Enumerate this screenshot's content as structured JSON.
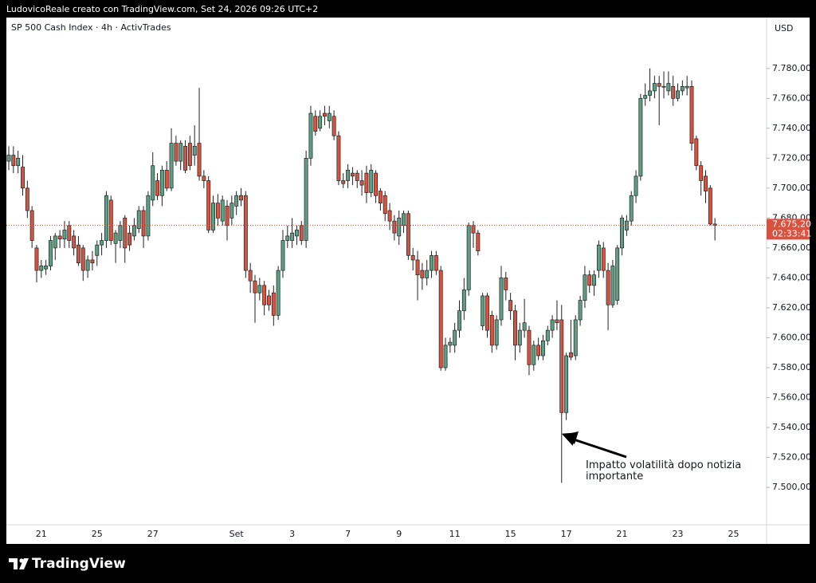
{
  "header": {
    "text": "LudovicoReale creato con TradingView.com, Set 24, 2026 09:26 UTC+2"
  },
  "footer": {
    "brand": "TradingView"
  },
  "chart_data": {
    "type": "candlestick",
    "title": "SP 500 Cash Index · 4h · ActivTrades",
    "currency": "USD",
    "up_color": "#5f9e82",
    "down_color": "#d8533f",
    "border_color": "#1e2124",
    "annotation": "Impatto volatilità dopo notizia importante",
    "last_price": {
      "value": 7675.2,
      "label": "7.675,20"
    },
    "countdown": "02:33:41",
    "ylim": [
      7475,
      7814
    ],
    "yticks": [
      {
        "value": 7500,
        "label": "7.500,00"
      },
      {
        "value": 7520,
        "label": "7.520,00"
      },
      {
        "value": 7540,
        "label": "7.540,00"
      },
      {
        "value": 7560,
        "label": "7.560,00"
      },
      {
        "value": 7580,
        "label": "7.580,00"
      },
      {
        "value": 7600,
        "label": "7.600,00"
      },
      {
        "value": 7620,
        "label": "7.620,00"
      },
      {
        "value": 7640,
        "label": "7.640,00"
      },
      {
        "value": 7660,
        "label": "7.660,00"
      },
      {
        "value": 7680,
        "label": "7.680,00"
      },
      {
        "value": 7700,
        "label": "7.700,00"
      },
      {
        "value": 7720,
        "label": "7.720,00"
      },
      {
        "value": 7740,
        "label": "7.740,00"
      },
      {
        "value": 7760,
        "label": "7.760,00"
      },
      {
        "value": 7780,
        "label": "7.780,00"
      }
    ],
    "categories": [
      null,
      null,
      null,
      null,
      null,
      null,
      null,
      "21",
      null,
      null,
      null,
      null,
      null,
      null,
      null,
      null,
      null,
      null,
      null,
      "25",
      null,
      null,
      null,
      null,
      null,
      null,
      null,
      null,
      null,
      null,
      null,
      "27",
      null,
      null,
      null,
      null,
      null,
      null,
      null,
      null,
      null,
      null,
      null,
      null,
      null,
      null,
      null,
      null,
      null,
      "Set",
      null,
      null,
      null,
      null,
      null,
      null,
      null,
      null,
      null,
      null,
      null,
      "3",
      null,
      null,
      null,
      null,
      null,
      null,
      null,
      null,
      null,
      null,
      null,
      "7",
      null,
      null,
      null,
      null,
      null,
      null,
      null,
      null,
      null,
      null,
      "9",
      null,
      null,
      null,
      null,
      null,
      null,
      null,
      null,
      null,
      null,
      null,
      "11",
      null,
      null,
      null,
      null,
      null,
      null,
      null,
      null,
      null,
      null,
      null,
      "15",
      null,
      null,
      null,
      null,
      null,
      null,
      null,
      null,
      null,
      null,
      null,
      "17",
      null,
      null,
      null,
      null,
      null,
      null,
      null,
      null,
      null,
      null,
      null,
      "21",
      null,
      null,
      null,
      null,
      null,
      null,
      null,
      null,
      null,
      null,
      null,
      "23",
      null,
      null,
      null,
      null,
      null,
      null,
      null,
      null,
      null,
      null,
      null,
      "25"
    ],
    "values": [
      [
        7718,
        7728,
        7712,
        7722
      ],
      [
        7722,
        7728,
        7710,
        7715
      ],
      [
        7715,
        7725,
        7710,
        7720
      ],
      [
        7714,
        7722,
        7695,
        7700
      ],
      [
        7700,
        7705,
        7680,
        7685
      ],
      [
        7685,
        7688,
        7660,
        7665
      ],
      [
        7660,
        7662,
        7637,
        7645
      ],
      [
        7645,
        7652,
        7640,
        7648
      ],
      [
        7646,
        7652,
        7642,
        7648
      ],
      [
        7648,
        7668,
        7645,
        7665
      ],
      [
        7660,
        7670,
        7652,
        7668
      ],
      [
        7668,
        7672,
        7660,
        7666
      ],
      [
        7666,
        7678,
        7660,
        7672
      ],
      [
        7675,
        7678,
        7660,
        7665
      ],
      [
        7668,
        7672,
        7655,
        7660
      ],
      [
        7662,
        7668,
        7648,
        7650
      ],
      [
        7660,
        7662,
        7638,
        7645
      ],
      [
        7645,
        7655,
        7640,
        7652
      ],
      [
        7652,
        7658,
        7645,
        7650
      ],
      [
        7655,
        7665,
        7648,
        7662
      ],
      [
        7662,
        7670,
        7655,
        7665
      ],
      [
        7665,
        7698,
        7660,
        7695
      ],
      [
        7692,
        7695,
        7662,
        7665
      ],
      [
        7663,
        7672,
        7650,
        7670
      ],
      [
        7665,
        7678,
        7660,
        7675
      ],
      [
        7680,
        7682,
        7650,
        7660
      ],
      [
        7670,
        7675,
        7658,
        7662
      ],
      [
        7668,
        7680,
        7665,
        7675
      ],
      [
        7673,
        7688,
        7670,
        7685
      ],
      [
        7685,
        7688,
        7660,
        7668
      ],
      [
        7668,
        7698,
        7665,
        7695
      ],
      [
        7692,
        7724,
        7688,
        7715
      ],
      [
        7705,
        7710,
        7692,
        7695
      ],
      [
        7695,
        7715,
        7688,
        7712
      ],
      [
        7712,
        7718,
        7698,
        7700
      ],
      [
        7700,
        7740,
        7698,
        7730
      ],
      [
        7730,
        7735,
        7715,
        7718
      ],
      [
        7718,
        7732,
        7712,
        7730
      ],
      [
        7728,
        7732,
        7710,
        7712
      ],
      [
        7730,
        7735,
        7712,
        7715
      ],
      [
        7722,
        7742,
        7715,
        7728
      ],
      [
        7730,
        7767,
        7705,
        7708
      ],
      [
        7708,
        7712,
        7700,
        7705
      ],
      [
        7705,
        7708,
        7670,
        7672
      ],
      [
        7672,
        7695,
        7670,
        7690
      ],
      [
        7690,
        7696,
        7675,
        7680
      ],
      [
        7678,
        7695,
        7675,
        7692
      ],
      [
        7688,
        7692,
        7665,
        7675
      ],
      [
        7680,
        7695,
        7675,
        7690
      ],
      [
        7688,
        7698,
        7682,
        7695
      ],
      [
        7695,
        7700,
        7688,
        7692
      ],
      [
        7695,
        7698,
        7640,
        7645
      ],
      [
        7645,
        7650,
        7630,
        7638
      ],
      [
        7638,
        7642,
        7610,
        7630
      ],
      [
        7630,
        7640,
        7625,
        7635
      ],
      [
        7635,
        7638,
        7615,
        7622
      ],
      [
        7628,
        7632,
        7618,
        7622
      ],
      [
        7630,
        7635,
        7608,
        7615
      ],
      [
        7615,
        7648,
        7612,
        7645
      ],
      [
        7645,
        7672,
        7640,
        7665
      ],
      [
        7665,
        7675,
        7660,
        7668
      ],
      [
        7665,
        7680,
        7660,
        7670
      ],
      [
        7668,
        7675,
        7662,
        7672
      ],
      [
        7675,
        7678,
        7662,
        7665
      ],
      [
        7665,
        7725,
        7660,
        7720
      ],
      [
        7720,
        7755,
        7715,
        7750
      ],
      [
        7748,
        7752,
        7735,
        7738
      ],
      [
        7740,
        7752,
        7738,
        7748
      ],
      [
        7750,
        7755,
        7742,
        7748
      ],
      [
        7745,
        7755,
        7740,
        7750
      ],
      [
        7748,
        7752,
        7732,
        7735
      ],
      [
        7735,
        7738,
        7702,
        7705
      ],
      [
        7705,
        7710,
        7700,
        7703
      ],
      [
        7705,
        7716,
        7700,
        7712
      ],
      [
        7710,
        7714,
        7702,
        7708
      ],
      [
        7710,
        7712,
        7700,
        7705
      ],
      [
        7705,
        7712,
        7695,
        7702
      ],
      [
        7710,
        7715,
        7690,
        7697
      ],
      [
        7697,
        7716,
        7694,
        7712
      ],
      [
        7710,
        7712,
        7690,
        7695
      ],
      [
        7698,
        7700,
        7685,
        7690
      ],
      [
        7695,
        7698,
        7678,
        7683
      ],
      [
        7685,
        7690,
        7672,
        7678
      ],
      [
        7678,
        7682,
        7665,
        7670
      ],
      [
        7668,
        7685,
        7662,
        7680
      ],
      [
        7675,
        7685,
        7670,
        7683
      ],
      [
        7683,
        7685,
        7652,
        7655
      ],
      [
        7655,
        7660,
        7645,
        7652
      ],
      [
        7652,
        7658,
        7625,
        7642
      ],
      [
        7645,
        7650,
        7632,
        7640
      ],
      [
        7640,
        7652,
        7635,
        7645
      ],
      [
        7645,
        7658,
        7640,
        7655
      ],
      [
        7655,
        7658,
        7642,
        7645
      ],
      [
        7645,
        7648,
        7578,
        7580
      ],
      [
        7580,
        7600,
        7578,
        7595
      ],
      [
        7595,
        7600,
        7590,
        7597
      ],
      [
        7595,
        7610,
        7590,
        7605
      ],
      [
        7605,
        7625,
        7600,
        7618
      ],
      [
        7618,
        7640,
        7612,
        7632
      ],
      [
        7632,
        7677,
        7628,
        7675
      ],
      [
        7675,
        7678,
        7660,
        7670
      ],
      [
        7670,
        7672,
        7655,
        7658
      ],
      [
        7608,
        7630,
        7605,
        7628
      ],
      [
        7628,
        7630,
        7600,
        7605
      ],
      [
        7615,
        7618,
        7590,
        7595
      ],
      [
        7595,
        7615,
        7592,
        7612
      ],
      [
        7612,
        7648,
        7608,
        7640
      ],
      [
        7640,
        7644,
        7625,
        7632
      ],
      [
        7625,
        7630,
        7612,
        7618
      ],
      [
        7618,
        7622,
        7585,
        7595
      ],
      [
        7595,
        7610,
        7590,
        7605
      ],
      [
        7605,
        7626,
        7600,
        7610
      ],
      [
        7605,
        7608,
        7575,
        7582
      ],
      [
        7582,
        7598,
        7578,
        7595
      ],
      [
        7595,
        7600,
        7585,
        7588
      ],
      [
        7588,
        7602,
        7585,
        7598
      ],
      [
        7598,
        7608,
        7595,
        7605
      ],
      [
        7605,
        7615,
        7600,
        7612
      ],
      [
        7612,
        7625,
        7605,
        7610
      ],
      [
        7612,
        7622,
        7503,
        7550
      ],
      [
        7550,
        7590,
        7545,
        7588
      ],
      [
        7590,
        7612,
        7585,
        7587
      ],
      [
        7588,
        7615,
        7585,
        7612
      ],
      [
        7612,
        7628,
        7608,
        7625
      ],
      [
        7625,
        7648,
        7620,
        7642
      ],
      [
        7642,
        7645,
        7630,
        7635
      ],
      [
        7635,
        7645,
        7628,
        7642
      ],
      [
        7645,
        7665,
        7640,
        7662
      ],
      [
        7660,
        7664,
        7640,
        7645
      ],
      [
        7645,
        7650,
        7605,
        7622
      ],
      [
        7622,
        7652,
        7620,
        7648
      ],
      [
        7625,
        7662,
        7622,
        7660
      ],
      [
        7660,
        7682,
        7655,
        7680
      ],
      [
        7672,
        7682,
        7668,
        7678
      ],
      [
        7678,
        7698,
        7675,
        7695
      ],
      [
        7695,
        7712,
        7690,
        7708
      ],
      [
        7708,
        7763,
        7705,
        7760
      ],
      [
        7760,
        7770,
        7755,
        7762
      ],
      [
        7762,
        7780,
        7758,
        7765
      ],
      [
        7765,
        7775,
        7760,
        7770
      ],
      [
        7770,
        7775,
        7742,
        7768
      ],
      [
        7768,
        7778,
        7760,
        7768
      ],
      [
        7765,
        7778,
        7762,
        7770
      ],
      [
        7768,
        7775,
        7755,
        7760
      ],
      [
        7760,
        7770,
        7758,
        7765
      ],
      [
        7765,
        7772,
        7762,
        7768
      ],
      [
        7767,
        7775,
        7762,
        7768
      ],
      [
        7768,
        7772,
        7725,
        7730
      ],
      [
        7733,
        7735,
        7712,
        7715
      ],
      [
        7715,
        7718,
        7695,
        7705
      ],
      [
        7708,
        7712,
        7690,
        7698
      ],
      [
        7700,
        7702,
        7675,
        7676
      ],
      [
        7676,
        7680,
        7665,
        7675.2
      ],
      null,
      null,
      null,
      null
    ]
  }
}
